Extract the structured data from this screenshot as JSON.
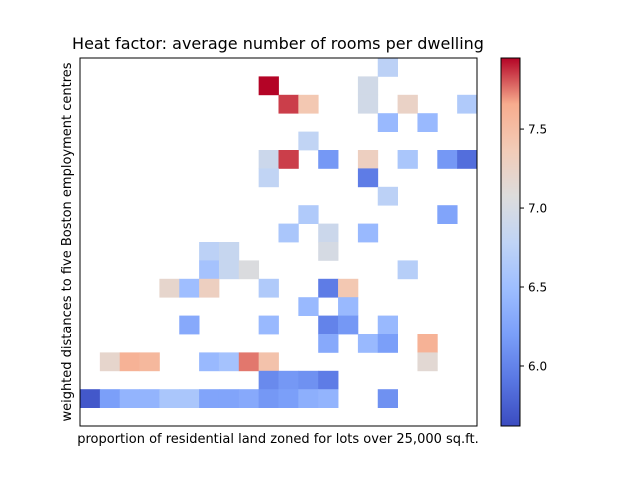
{
  "chart_data": {
    "type": "heatmap",
    "title": "Heat factor: average number of rooms per dwelling",
    "xlabel": "proportion of residential land zoned for lots over 25,000 sq.ft.",
    "ylabel": "weighted distances to five Boston employment centres",
    "grid": false,
    "colormap": "coolwarm",
    "n_cols": 20,
    "n_rows": 20,
    "row_order": "top-to-bottom",
    "colorbar": {
      "vmin": 5.62,
      "vmax": 7.95,
      "ticks": [
        6.0,
        6.5,
        7.0,
        7.5
      ],
      "tick_labels": [
        "6.0",
        "6.5",
        "7.0",
        "7.5"
      ],
      "placement": "right"
    },
    "cells": [
      [
        0,
        15,
        6.75
      ],
      [
        1,
        9,
        7.95
      ],
      [
        1,
        14,
        6.95
      ],
      [
        2,
        10,
        7.85
      ],
      [
        2,
        11,
        7.4
      ],
      [
        2,
        14,
        6.95
      ],
      [
        2,
        16,
        7.25
      ],
      [
        2,
        19,
        6.65
      ],
      [
        3,
        15,
        6.45
      ],
      [
        3,
        17,
        6.45
      ],
      [
        4,
        11,
        6.8
      ],
      [
        5,
        9,
        6.9
      ],
      [
        5,
        10,
        7.85
      ],
      [
        5,
        12,
        6.15
      ],
      [
        5,
        14,
        7.3
      ],
      [
        5,
        16,
        6.6
      ],
      [
        5,
        18,
        6.15
      ],
      [
        5,
        19,
        5.85
      ],
      [
        6,
        9,
        6.8
      ],
      [
        6,
        14,
        5.95
      ],
      [
        7,
        15,
        6.75
      ],
      [
        8,
        11,
        6.65
      ],
      [
        8,
        18,
        6.25
      ],
      [
        9,
        10,
        6.6
      ],
      [
        9,
        12,
        6.9
      ],
      [
        9,
        14,
        6.45
      ],
      [
        10,
        6,
        6.75
      ],
      [
        10,
        7,
        6.85
      ],
      [
        10,
        12,
        7.0
      ],
      [
        11,
        6,
        6.55
      ],
      [
        11,
        7,
        6.85
      ],
      [
        11,
        8,
        7.05
      ],
      [
        11,
        16,
        6.7
      ],
      [
        12,
        4,
        7.2
      ],
      [
        12,
        5,
        6.5
      ],
      [
        12,
        6,
        7.3
      ],
      [
        12,
        9,
        6.65
      ],
      [
        12,
        12,
        5.95
      ],
      [
        12,
        13,
        7.4
      ],
      [
        13,
        11,
        6.45
      ],
      [
        13,
        13,
        6.45
      ],
      [
        14,
        5,
        6.3
      ],
      [
        14,
        9,
        6.45
      ],
      [
        14,
        12,
        6.0
      ],
      [
        14,
        13,
        6.15
      ],
      [
        14,
        15,
        6.45
      ],
      [
        15,
        12,
        6.3
      ],
      [
        15,
        14,
        6.45
      ],
      [
        15,
        15,
        6.2
      ],
      [
        15,
        17,
        7.6
      ],
      [
        16,
        1,
        7.2
      ],
      [
        16,
        2,
        7.6
      ],
      [
        16,
        3,
        7.55
      ],
      [
        16,
        6,
        6.45
      ],
      [
        16,
        7,
        6.55
      ],
      [
        16,
        8,
        7.75
      ],
      [
        16,
        9,
        7.45
      ],
      [
        16,
        17,
        7.15
      ],
      [
        17,
        9,
        6.05
      ],
      [
        17,
        10,
        6.15
      ],
      [
        17,
        11,
        6.1
      ],
      [
        17,
        12,
        5.95
      ],
      [
        18,
        0,
        5.7
      ],
      [
        18,
        1,
        6.2
      ],
      [
        18,
        2,
        6.4
      ],
      [
        18,
        3,
        6.4
      ],
      [
        18,
        4,
        6.6
      ],
      [
        18,
        5,
        6.6
      ],
      [
        18,
        6,
        6.25
      ],
      [
        18,
        7,
        6.25
      ],
      [
        18,
        8,
        6.3
      ],
      [
        18,
        9,
        6.15
      ],
      [
        18,
        10,
        6.2
      ],
      [
        18,
        11,
        6.35
      ],
      [
        18,
        12,
        6.4
      ],
      [
        18,
        15,
        6.1
      ]
    ]
  }
}
